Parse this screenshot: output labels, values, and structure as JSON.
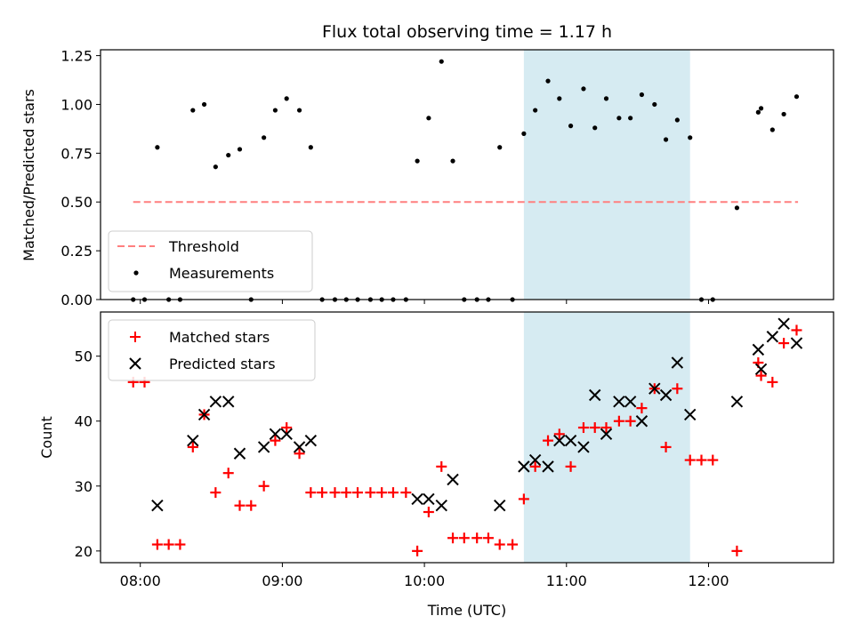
{
  "title": "Flux total observing time = 1.17 h",
  "chart_data": [
    {
      "type": "scatter",
      "panel": "top",
      "ylabel": "Matched/Predicted stars",
      "xlabel": "",
      "xlim": [
        7.72,
        12.88
      ],
      "ylim": [
        0,
        1.28
      ],
      "yticks": [
        0.0,
        0.25,
        0.5,
        0.75,
        1.0,
        1.25
      ],
      "ytick_labels": [
        "0.00",
        "0.25",
        "0.50",
        "0.75",
        "1.00",
        "1.25"
      ],
      "shaded_span": [
        10.7,
        11.87
      ],
      "threshold": {
        "label": "Threshold",
        "value": 0.5,
        "x_range": [
          7.95,
          12.63
        ],
        "color": "#ff7f7f"
      },
      "measurements": {
        "label": "Measurements",
        "color": "#000000",
        "points": [
          [
            7.95,
            0.0
          ],
          [
            8.03,
            0.0
          ],
          [
            8.12,
            0.78
          ],
          [
            8.2,
            0.0
          ],
          [
            8.28,
            0.0
          ],
          [
            8.37,
            0.97
          ],
          [
            8.45,
            1.0
          ],
          [
            8.53,
            0.68
          ],
          [
            8.62,
            0.74
          ],
          [
            8.7,
            0.77
          ],
          [
            8.78,
            0.0
          ],
          [
            8.87,
            0.83
          ],
          [
            8.95,
            0.97
          ],
          [
            9.03,
            1.03
          ],
          [
            9.12,
            0.97
          ],
          [
            9.2,
            0.78
          ],
          [
            9.28,
            0.0
          ],
          [
            9.37,
            0.0
          ],
          [
            9.45,
            0.0
          ],
          [
            9.53,
            0.0
          ],
          [
            9.62,
            0.0
          ],
          [
            9.7,
            0.0
          ],
          [
            9.78,
            0.0
          ],
          [
            9.87,
            0.0
          ],
          [
            9.95,
            0.71
          ],
          [
            10.03,
            0.93
          ],
          [
            10.12,
            1.22
          ],
          [
            10.2,
            0.71
          ],
          [
            10.28,
            0.0
          ],
          [
            10.37,
            0.0
          ],
          [
            10.45,
            0.0
          ],
          [
            10.53,
            0.78
          ],
          [
            10.62,
            0.0
          ],
          [
            10.7,
            0.85
          ],
          [
            10.78,
            0.97
          ],
          [
            10.87,
            1.12
          ],
          [
            10.95,
            1.03
          ],
          [
            11.03,
            0.89
          ],
          [
            11.12,
            1.08
          ],
          [
            11.2,
            0.88
          ],
          [
            11.28,
            1.03
          ],
          [
            11.37,
            0.93
          ],
          [
            11.45,
            0.93
          ],
          [
            11.53,
            1.05
          ],
          [
            11.62,
            1.0
          ],
          [
            11.7,
            0.82
          ],
          [
            11.78,
            0.92
          ],
          [
            11.87,
            0.83
          ],
          [
            11.95,
            0.0
          ],
          [
            12.03,
            0.0
          ],
          [
            12.2,
            0.47
          ],
          [
            12.35,
            0.96
          ],
          [
            12.37,
            0.98
          ],
          [
            12.45,
            0.87
          ],
          [
            12.53,
            0.95
          ],
          [
            12.62,
            1.04
          ]
        ]
      }
    },
    {
      "type": "scatter",
      "panel": "bottom",
      "ylabel": "Count",
      "xlabel": "Time (UTC)",
      "xlim": [
        7.72,
        12.88
      ],
      "ylim": [
        18.2,
        56.8
      ],
      "yticks": [
        20,
        30,
        40,
        50
      ],
      "ytick_labels": [
        "20",
        "30",
        "40",
        "50"
      ],
      "xticks": [
        8,
        9,
        10,
        11,
        12
      ],
      "xtick_labels": [
        "08:00",
        "09:00",
        "10:00",
        "11:00",
        "12:00"
      ],
      "shaded_span": [
        10.7,
        11.87
      ],
      "series": [
        {
          "name": "Matched stars",
          "marker": "plus",
          "color": "#ff0000",
          "points": [
            [
              7.95,
              46
            ],
            [
              8.03,
              46
            ],
            [
              8.12,
              21
            ],
            [
              8.2,
              21
            ],
            [
              8.28,
              21
            ],
            [
              8.37,
              36
            ],
            [
              8.45,
              41
            ],
            [
              8.53,
              29
            ],
            [
              8.62,
              32
            ],
            [
              8.7,
              27
            ],
            [
              8.78,
              27
            ],
            [
              8.87,
              30
            ],
            [
              8.95,
              37
            ],
            [
              9.03,
              39
            ],
            [
              9.12,
              35
            ],
            [
              9.2,
              29
            ],
            [
              9.28,
              29
            ],
            [
              9.37,
              29
            ],
            [
              9.45,
              29
            ],
            [
              9.53,
              29
            ],
            [
              9.62,
              29
            ],
            [
              9.7,
              29
            ],
            [
              9.78,
              29
            ],
            [
              9.87,
              29
            ],
            [
              9.95,
              20
            ],
            [
              10.03,
              26
            ],
            [
              10.12,
              33
            ],
            [
              10.2,
              22
            ],
            [
              10.28,
              22
            ],
            [
              10.37,
              22
            ],
            [
              10.45,
              22
            ],
            [
              10.53,
              21
            ],
            [
              10.62,
              21
            ],
            [
              10.7,
              28
            ],
            [
              10.78,
              33
            ],
            [
              10.87,
              37
            ],
            [
              10.95,
              38
            ],
            [
              11.03,
              33
            ],
            [
              11.12,
              39
            ],
            [
              11.2,
              39
            ],
            [
              11.28,
              39
            ],
            [
              11.37,
              40
            ],
            [
              11.45,
              40
            ],
            [
              11.53,
              42
            ],
            [
              11.62,
              45
            ],
            [
              11.7,
              36
            ],
            [
              11.78,
              45
            ],
            [
              11.87,
              34
            ],
            [
              11.95,
              34
            ],
            [
              12.03,
              34
            ],
            [
              12.2,
              20
            ],
            [
              12.35,
              49
            ],
            [
              12.37,
              47
            ],
            [
              12.45,
              46
            ],
            [
              12.53,
              52
            ],
            [
              12.62,
              54
            ]
          ]
        },
        {
          "name": "Predicted stars",
          "marker": "x",
          "color": "#000000",
          "points": [
            [
              8.12,
              27
            ],
            [
              8.37,
              37
            ],
            [
              8.45,
              41
            ],
            [
              8.53,
              43
            ],
            [
              8.62,
              43
            ],
            [
              8.7,
              35
            ],
            [
              8.87,
              36
            ],
            [
              8.95,
              38
            ],
            [
              9.03,
              38
            ],
            [
              9.12,
              36
            ],
            [
              9.2,
              37
            ],
            [
              9.95,
              28
            ],
            [
              10.03,
              28
            ],
            [
              10.12,
              27
            ],
            [
              10.2,
              31
            ],
            [
              10.53,
              27
            ],
            [
              10.7,
              33
            ],
            [
              10.78,
              34
            ],
            [
              10.87,
              33
            ],
            [
              10.95,
              37
            ],
            [
              11.03,
              37
            ],
            [
              11.12,
              36
            ],
            [
              11.2,
              44
            ],
            [
              11.28,
              38
            ],
            [
              11.37,
              43
            ],
            [
              11.45,
              43
            ],
            [
              11.53,
              40
            ],
            [
              11.62,
              45
            ],
            [
              11.7,
              44
            ],
            [
              11.78,
              49
            ],
            [
              11.87,
              41
            ],
            [
              12.2,
              43
            ],
            [
              12.35,
              51
            ],
            [
              12.37,
              48
            ],
            [
              12.45,
              53
            ],
            [
              12.53,
              55
            ],
            [
              12.62,
              52
            ]
          ]
        }
      ]
    }
  ]
}
